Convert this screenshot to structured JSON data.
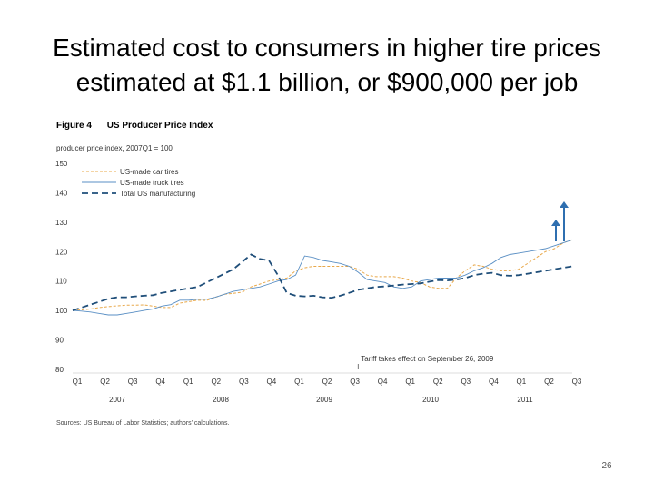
{
  "slide": {
    "title_line1": "Estimated cost to consumers in higher tire prices",
    "title_line2": "estimated at $1.1 billion, or $900,000 per job",
    "page_number": "26"
  },
  "figure": {
    "label": "Figure 4",
    "title": "US Producer Price Index",
    "y_caption": "producer price index, 2007Q1 = 100",
    "source": "Sources: US Bureau of Labor Statistics; authors' calculations."
  },
  "colors": {
    "car_tires": "#e8a84a",
    "truck_tires": "#5a8fc4",
    "manufacturing": "#1f4e79",
    "arrow": "#2f6fb0"
  },
  "chart_data": {
    "type": "line",
    "title": "US Producer Price Index",
    "ylabel": "producer price index, 2007Q1 = 100",
    "ylim": [
      80,
      150
    ],
    "yticks": [
      "80",
      "90",
      "100",
      "110",
      "120",
      "130",
      "140",
      "150"
    ],
    "grid": false,
    "legend_position": "top-left",
    "x_month_labels": [
      "Q1",
      "Q2",
      "Q3",
      "Q4",
      "Q1",
      "Q2",
      "Q3",
      "Q4",
      "Q1",
      "Q2",
      "Q3",
      "Q4",
      "Q1",
      "Q2",
      "Q3",
      "Q4",
      "Q1",
      "Q2",
      "Q3"
    ],
    "x_year_labels": [
      "2007",
      "2008",
      "2009",
      "2010",
      "2011"
    ],
    "x": [
      "2007-01",
      "2007-02",
      "2007-03",
      "2007-04",
      "2007-05",
      "2007-06",
      "2007-07",
      "2007-08",
      "2007-09",
      "2007-10",
      "2007-11",
      "2007-12",
      "2008-01",
      "2008-02",
      "2008-03",
      "2008-04",
      "2008-05",
      "2008-06",
      "2008-07",
      "2008-08",
      "2008-09",
      "2008-10",
      "2008-11",
      "2008-12",
      "2009-01",
      "2009-02",
      "2009-03",
      "2009-04",
      "2009-05",
      "2009-06",
      "2009-07",
      "2009-08",
      "2009-09",
      "2009-10",
      "2009-11",
      "2009-12",
      "2010-01",
      "2010-02",
      "2010-03",
      "2010-04",
      "2010-05",
      "2010-06",
      "2010-07",
      "2010-08",
      "2010-09",
      "2010-10",
      "2010-11",
      "2010-12",
      "2011-01",
      "2011-02",
      "2011-03",
      "2011-04",
      "2011-05",
      "2011-06",
      "2011-07",
      "2011-08",
      "2011-09"
    ],
    "series": [
      {
        "name": "US-made car tires",
        "style": "dashed-light",
        "values": [
          100,
          100.2,
          100.5,
          101,
          101.3,
          101.6,
          101.8,
          101.8,
          101.9,
          101.5,
          101,
          101,
          102.5,
          103,
          103.5,
          103.4,
          104.5,
          105.5,
          105.8,
          106.2,
          108,
          109,
          110,
          110.5,
          111,
          113.5,
          114.5,
          115,
          115,
          115,
          115,
          115,
          114,
          112,
          111.5,
          111.5,
          111.5,
          111,
          110,
          109.5,
          108,
          107.5,
          107.5,
          111,
          113.5,
          115.5,
          115,
          114,
          113.5,
          113.5,
          114,
          116,
          118,
          120,
          121,
          123,
          124
        ]
      },
      {
        "name": "US-made truck tires",
        "style": "solid-thin",
        "values": [
          100,
          99.8,
          99.5,
          99,
          98.5,
          98.5,
          99,
          99.5,
          100,
          100.5,
          101.5,
          102,
          103.5,
          103.5,
          103.8,
          103.8,
          104.5,
          105.5,
          106.5,
          107,
          107.5,
          108,
          109,
          110,
          110.5,
          112,
          118.5,
          118,
          117,
          116.5,
          116,
          115,
          113,
          110.5,
          110,
          109.5,
          108,
          107.5,
          108,
          110,
          110.5,
          111,
          111,
          111,
          112,
          113.5,
          114.5,
          116,
          118,
          119,
          119.5,
          120,
          120.5,
          121,
          122,
          123,
          124
        ]
      },
      {
        "name": "Total US manufacturing",
        "style": "dashed-heavy",
        "values": [
          100,
          101,
          102,
          103,
          104,
          104.5,
          104.5,
          104.8,
          105,
          105.2,
          106,
          106.5,
          107,
          107.5,
          108,
          109.5,
          111,
          112.5,
          114,
          116.5,
          119,
          117.5,
          117,
          112,
          106,
          105,
          104.8,
          105,
          104.5,
          104.3,
          105,
          106,
          107,
          107.5,
          108,
          108.2,
          108.5,
          108.8,
          109,
          109.2,
          109.8,
          110.3,
          110.2,
          110.5,
          111,
          112,
          112.5,
          112.8,
          112,
          111.8,
          112,
          112.5,
          113,
          113.5,
          114,
          114.5,
          115
        ]
      }
    ],
    "annotation": "Tariff takes effect on September 26, 2009",
    "annotation_x": "2009-09"
  }
}
